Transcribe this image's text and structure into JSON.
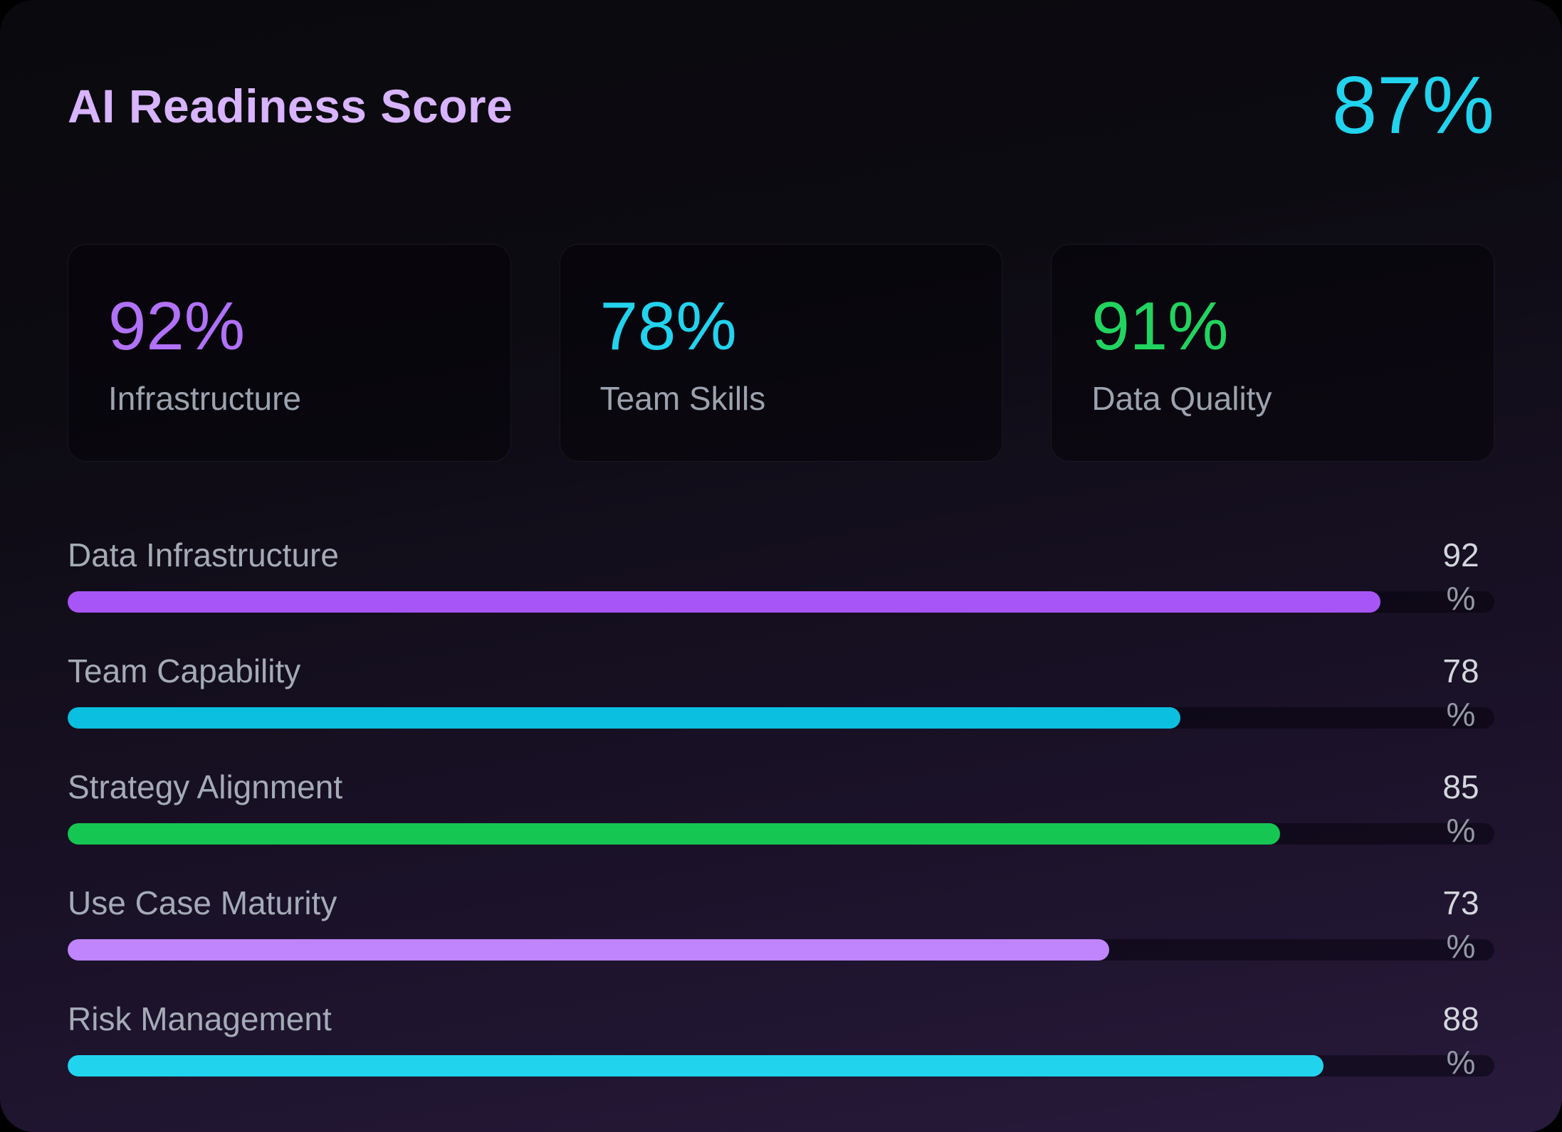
{
  "header": {
    "title": "AI Readiness Score",
    "overall_score": "87%",
    "title_color": "#d8b4fe",
    "overall_color": "#22d3ee"
  },
  "stat_cards": [
    {
      "value": "92%",
      "label": "Infrastructure",
      "color": "#b171f8"
    },
    {
      "value": "78%",
      "label": "Team Skills",
      "color": "#22d3ee"
    },
    {
      "value": "91%",
      "label": "Data Quality",
      "color": "#21d45f"
    }
  ],
  "metrics": [
    {
      "label": "Data Infrastructure",
      "value": "92",
      "unit": "%",
      "percent": 92,
      "color": "#a855f7"
    },
    {
      "label": "Team Capability",
      "value": "78",
      "unit": "%",
      "percent": 78,
      "color": "#0abfdf"
    },
    {
      "label": "Strategy Alignment",
      "value": "85",
      "unit": "%",
      "percent": 85,
      "color": "#16c653"
    },
    {
      "label": "Use Case Maturity",
      "value": "73",
      "unit": "%",
      "percent": 73,
      "color": "#c084fc"
    },
    {
      "label": "Risk Management",
      "value": "88",
      "unit": "%",
      "percent": 88,
      "color": "#22d3ee"
    }
  ],
  "chart_data": {
    "type": "bar",
    "orientation": "horizontal",
    "title": "AI Readiness Score",
    "overall_score": 87,
    "unit": "%",
    "categories": [
      "Data Infrastructure",
      "Team Capability",
      "Strategy Alignment",
      "Use Case Maturity",
      "Risk Management"
    ],
    "values": [
      92,
      78,
      85,
      73,
      88
    ],
    "xlim": [
      0,
      100
    ],
    "bar_colors": [
      "#a855f7",
      "#0abfdf",
      "#16c653",
      "#c084fc",
      "#22d3ee"
    ],
    "grid": false,
    "legend": false,
    "summary_stats": [
      {
        "label": "Infrastructure",
        "value": 92
      },
      {
        "label": "Team Skills",
        "value": 78
      },
      {
        "label": "Data Quality",
        "value": 91
      }
    ]
  }
}
